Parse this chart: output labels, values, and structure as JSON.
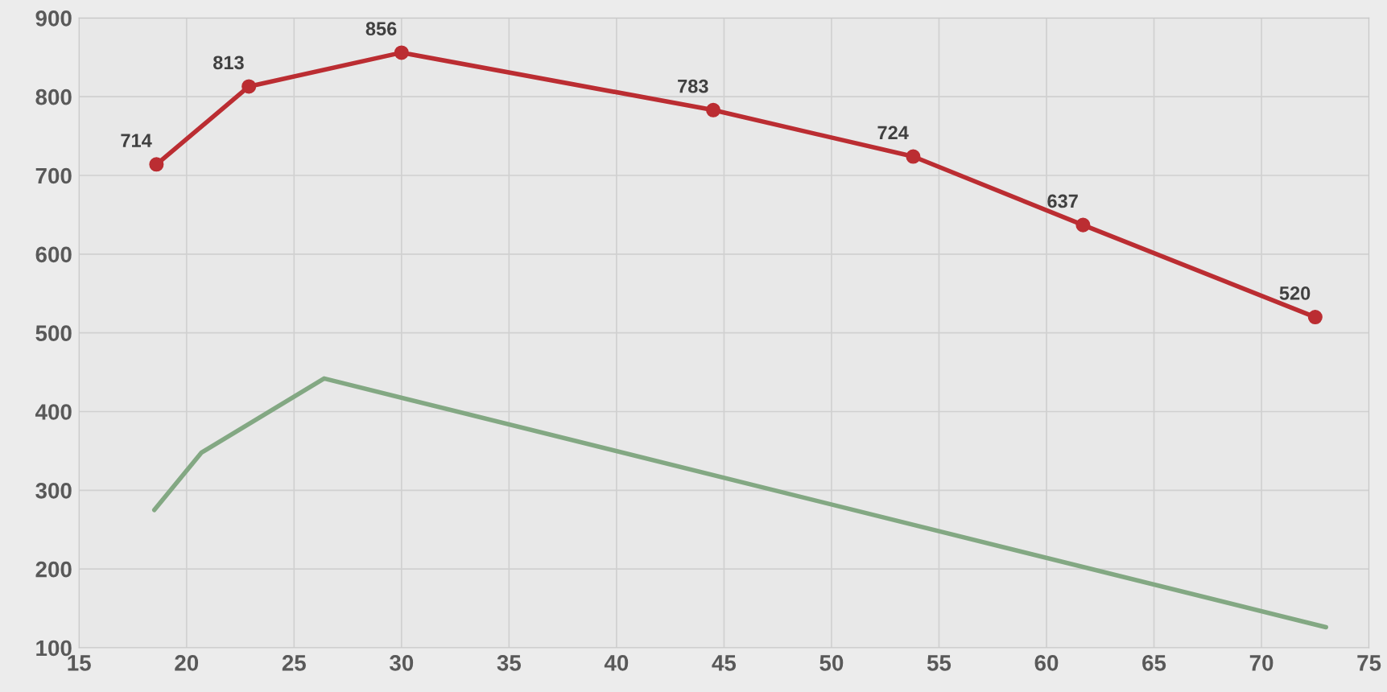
{
  "chart_data": {
    "type": "line",
    "series": [
      {
        "color": "#bb2d32",
        "marker": "circle",
        "x": [
          18.6,
          22.9,
          30.0,
          44.5,
          53.8,
          61.7,
          72.5
        ],
        "values": [
          714,
          813,
          856,
          783,
          724,
          637,
          520
        ],
        "value_labels": [
          "714",
          "813",
          "856",
          "783",
          "724",
          "637",
          "520"
        ]
      },
      {
        "color": "#83a883",
        "marker": "none",
        "x": [
          18.5,
          20.7,
          26.4,
          73.0
        ],
        "values": [
          275,
          348,
          442,
          126
        ]
      }
    ],
    "xlim": [
      15,
      75
    ],
    "xticks": [
      15,
      20,
      25,
      30,
      35,
      40,
      45,
      50,
      55,
      60,
      65,
      70,
      75
    ],
    "ylim": [
      100,
      900
    ],
    "yticks": [
      100,
      200,
      300,
      400,
      500,
      600,
      700,
      800,
      900
    ],
    "grid": true,
    "legend": false
  }
}
